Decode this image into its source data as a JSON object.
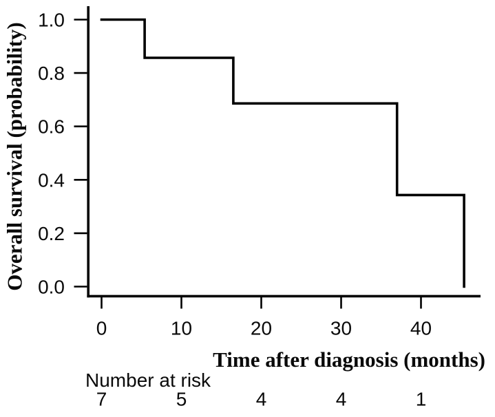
{
  "figure": {
    "background_color": "#ffffff",
    "line_color": "#000000",
    "text_color": "#0a0a0a"
  },
  "chart_data": {
    "type": "line",
    "variant": "kaplan-meier-survival-step-curve",
    "title": "",
    "xlabel": "Time after diagnosis (months)",
    "ylabel": "Overall survival (probability)",
    "xlim": [
      0,
      47
    ],
    "ylim": [
      0.0,
      1.0
    ],
    "grid": false,
    "legend": false,
    "x_ticks": [
      {
        "value": 0,
        "label": "0"
      },
      {
        "value": 10,
        "label": "10"
      },
      {
        "value": 20,
        "label": "20"
      },
      {
        "value": 30,
        "label": "30"
      },
      {
        "value": 40,
        "label": "40"
      }
    ],
    "y_ticks": [
      {
        "value": 0.0,
        "label": "0.0"
      },
      {
        "value": 0.2,
        "label": "0.2"
      },
      {
        "value": 0.4,
        "label": "0.4"
      },
      {
        "value": 0.6,
        "label": "0.6"
      },
      {
        "value": 0.8,
        "label": "0.8"
      },
      {
        "value": 1.0,
        "label": "1.0"
      }
    ],
    "series": [
      {
        "name": "Overall survival",
        "color": "#000000",
        "step_x": [
          0,
          5.4,
          16.5,
          37.0,
          45.4
        ],
        "step_y": [
          1.0,
          0.857,
          0.686,
          0.343,
          0.0
        ]
      }
    ],
    "risk_table": {
      "label": "Number at risk",
      "times": [
        0,
        10,
        20,
        30,
        40
      ],
      "counts": [
        "7",
        "5",
        "4",
        "4",
        "1"
      ]
    }
  }
}
